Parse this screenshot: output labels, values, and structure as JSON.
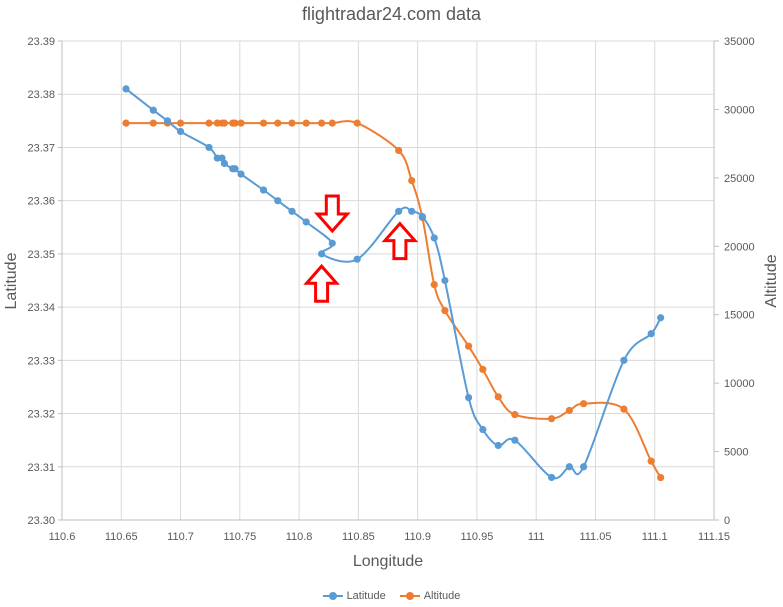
{
  "chart_data": {
    "type": "scatter",
    "title": "flightradar24.com data",
    "xlabel": "Longitude",
    "ylabel": "Latitude",
    "y2label": "Altitude",
    "xlim": [
      110.6,
      111.15
    ],
    "ylim": [
      23.3,
      23.39
    ],
    "y2lim": [
      0,
      35000
    ],
    "x_ticks": [
      "110.6",
      "110.65",
      "110.7",
      "110.75",
      "110.8",
      "110.85",
      "110.9",
      "110.95",
      "111",
      "111.05",
      "111.1",
      "111.15"
    ],
    "y_ticks": [
      "23.39",
      "23.38",
      "23.37",
      "23.36",
      "23.35",
      "23.34",
      "23.33",
      "23.32",
      "23.31",
      "23.30"
    ],
    "y2_ticks": [
      "35000",
      "30000",
      "25000",
      "20000",
      "15000",
      "10000",
      "5000",
      "0"
    ],
    "grid": true,
    "legend_position": "bottom",
    "series": [
      {
        "name": "Latitude",
        "axis": "left",
        "color": "#5B9BD5",
        "smooth": true,
        "points": [
          [
            110.654,
            23.381
          ],
          [
            110.677,
            23.377
          ],
          [
            110.689,
            23.375
          ],
          [
            110.7,
            23.373
          ],
          [
            110.724,
            23.37
          ],
          [
            110.731,
            23.368
          ],
          [
            110.735,
            23.368
          ],
          [
            110.737,
            23.367
          ],
          [
            110.744,
            23.366
          ],
          [
            110.746,
            23.366
          ],
          [
            110.751,
            23.365
          ],
          [
            110.77,
            23.362
          ],
          [
            110.782,
            23.36
          ],
          [
            110.794,
            23.358
          ],
          [
            110.806,
            23.356
          ],
          [
            110.828,
            23.352
          ],
          [
            110.819,
            23.35
          ],
          [
            110.849,
            23.349
          ],
          [
            110.884,
            23.358
          ],
          [
            110.895,
            23.358
          ],
          [
            110.904,
            23.357
          ],
          [
            110.914,
            23.353
          ],
          [
            110.923,
            23.345
          ],
          [
            110.943,
            23.323
          ],
          [
            110.955,
            23.317
          ],
          [
            110.968,
            23.314
          ],
          [
            110.982,
            23.315
          ],
          [
            111.013,
            23.308
          ],
          [
            111.028,
            23.31
          ],
          [
            111.04,
            23.31
          ],
          [
            111.074,
            23.33
          ],
          [
            111.097,
            23.335
          ],
          [
            111.105,
            23.338
          ]
        ]
      },
      {
        "name": "Altitude",
        "axis": "right",
        "color": "#ED7D31",
        "smooth": true,
        "points": [
          [
            110.654,
            29000
          ],
          [
            110.677,
            29000
          ],
          [
            110.689,
            29000
          ],
          [
            110.7,
            29000
          ],
          [
            110.724,
            29000
          ],
          [
            110.731,
            29000
          ],
          [
            110.735,
            29000
          ],
          [
            110.737,
            29000
          ],
          [
            110.744,
            29000
          ],
          [
            110.746,
            29000
          ],
          [
            110.751,
            29000
          ],
          [
            110.77,
            29000
          ],
          [
            110.782,
            29000
          ],
          [
            110.794,
            29000
          ],
          [
            110.806,
            29000
          ],
          [
            110.819,
            29000
          ],
          [
            110.828,
            29000
          ],
          [
            110.849,
            29000
          ],
          [
            110.884,
            27000
          ],
          [
            110.895,
            24800
          ],
          [
            110.904,
            22100
          ],
          [
            110.914,
            17200
          ],
          [
            110.923,
            15300
          ],
          [
            110.943,
            12700
          ],
          [
            110.955,
            11000
          ],
          [
            110.968,
            9000
          ],
          [
            110.982,
            7700
          ],
          [
            111.013,
            7400
          ],
          [
            111.028,
            8000
          ],
          [
            111.04,
            8500
          ],
          [
            111.074,
            8100
          ],
          [
            111.097,
            4300
          ],
          [
            111.105,
            3100
          ]
        ]
      }
    ],
    "annotations": [
      {
        "type": "arrow-down",
        "color": "#FF0000",
        "x": 110.828,
        "y": 23.3575
      },
      {
        "type": "arrow-up",
        "color": "#FF0000",
        "x": 110.819,
        "y": 23.3445
      },
      {
        "type": "arrow-up",
        "color": "#FF0000",
        "x": 110.885,
        "y": 23.3525
      }
    ]
  },
  "legend": {
    "items": [
      {
        "label": "Latitude",
        "color": "#5B9BD5"
      },
      {
        "label": "Altitude",
        "color": "#ED7D31"
      }
    ]
  }
}
